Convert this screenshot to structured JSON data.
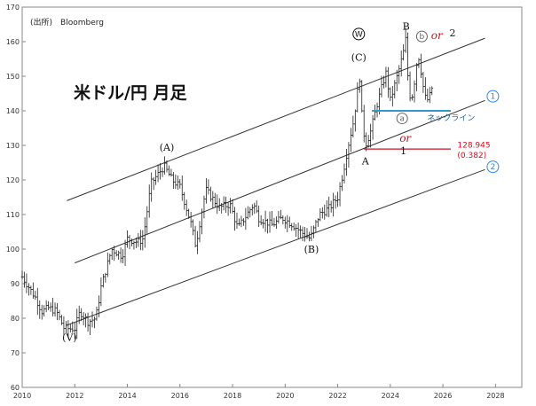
{
  "source_label": "(出所)　Bloomberg",
  "title": "米ドル/円 月足",
  "chart_data": {
    "type": "candlestick",
    "title": "米ドル/円 月足",
    "xlim": [
      2010,
      2029
    ],
    "ylim": [
      60,
      170
    ],
    "x_ticks": [
      2010,
      2012,
      2014,
      2016,
      2018,
      2020,
      2022,
      2024,
      2026,
      2028
    ],
    "y_ticks": [
      60,
      70,
      80,
      90,
      100,
      110,
      120,
      130,
      140,
      150,
      160,
      170
    ],
    "price_series": [
      [
        2010.0,
        92
      ],
      [
        2010.5,
        86
      ],
      [
        2010.75,
        82
      ],
      [
        2011.0,
        83
      ],
      [
        2011.3,
        82
      ],
      [
        2011.6,
        77
      ],
      [
        2011.8,
        77
      ],
      [
        2012.0,
        77
      ],
      [
        2012.2,
        82
      ],
      [
        2012.5,
        79
      ],
      [
        2012.8,
        80
      ],
      [
        2013.0,
        89
      ],
      [
        2013.4,
        100
      ],
      [
        2013.8,
        98
      ],
      [
        2014.0,
        103
      ],
      [
        2014.4,
        102
      ],
      [
        2014.6,
        103
      ],
      [
        2014.9,
        119
      ],
      [
        2015.4,
        124
      ],
      [
        2015.7,
        120
      ],
      [
        2016.0,
        118
      ],
      [
        2016.4,
        108
      ],
      [
        2016.6,
        101
      ],
      [
        2016.9,
        114
      ],
      [
        2017.0,
        117
      ],
      [
        2017.5,
        112
      ],
      [
        2017.9,
        113
      ],
      [
        2018.2,
        106
      ],
      [
        2018.8,
        113
      ],
      [
        2019.0,
        109
      ],
      [
        2019.5,
        107
      ],
      [
        2019.9,
        109
      ],
      [
        2020.3,
        107
      ],
      [
        2020.6,
        105
      ],
      [
        2020.95,
        103
      ],
      [
        2021.3,
        110
      ],
      [
        2021.7,
        112
      ],
      [
        2022.0,
        115
      ],
      [
        2022.2,
        122
      ],
      [
        2022.4,
        130
      ],
      [
        2022.6,
        137
      ],
      [
        2022.83,
        150
      ],
      [
        2022.9,
        140
      ],
      [
        2023.05,
        130
      ],
      [
        2023.25,
        134
      ],
      [
        2023.5,
        142
      ],
      [
        2023.83,
        151
      ],
      [
        2024.0,
        143
      ],
      [
        2024.3,
        151
      ],
      [
        2024.5,
        157
      ],
      [
        2024.58,
        161
      ],
      [
        2024.7,
        146
      ],
      [
        2024.8,
        143
      ],
      [
        2024.95,
        150
      ],
      [
        2025.05,
        157
      ],
      [
        2025.2,
        150
      ],
      [
        2025.3,
        144
      ],
      [
        2025.45,
        143
      ],
      [
        2025.6,
        147
      ]
    ],
    "channel_lines": [
      {
        "from": [
          2011.7,
          78
        ],
        "to": [
          2027.6,
          123
        ]
      },
      {
        "from": [
          2012.0,
          96
        ],
        "to": [
          2027.6,
          143
        ]
      },
      {
        "from": [
          2011.7,
          114
        ],
        "to": [
          2027.6,
          161
        ]
      }
    ],
    "wave_labels": [
      {
        "text": "(V)",
        "x": 2011.8,
        "y": 73.5
      },
      {
        "text": "(A)",
        "x": 2015.5,
        "y": 128.5
      },
      {
        "text": "(B)",
        "x": 2021.0,
        "y": 99.0
      },
      {
        "text": "(C)",
        "x": 2022.8,
        "y": 154.5
      },
      {
        "text": "A",
        "x": 2023.05,
        "y": 124.5
      },
      {
        "text": "B",
        "x": 2024.6,
        "y": 163.5
      },
      {
        "text": "1",
        "x": 2024.5,
        "y": 127.5
      }
    ],
    "annotations": {
      "w_circle": "W",
      "a_circle": "a",
      "b_circle": "b",
      "or_top": "or",
      "top_2": "2",
      "or_mid": "or",
      "neckline_label": "ネックライン",
      "level_value": "128.945",
      "level_ratio": "(0.382)",
      "channel_1": "1",
      "channel_2": "2"
    },
    "neckline": {
      "from": [
        2023.3,
        140
      ],
      "to": [
        2026.3,
        140
      ],
      "color": "#3399cc"
    },
    "level_line": {
      "from": [
        2023.0,
        128.945
      ],
      "to": [
        2026.3,
        128.945
      ],
      "color": "#cc1122"
    },
    "colors": {
      "candles": "#222222",
      "channels": "#333333",
      "neckline": "#3399cc",
      "level": "#cc1122",
      "circle_blue": "#3388dd"
    }
  }
}
